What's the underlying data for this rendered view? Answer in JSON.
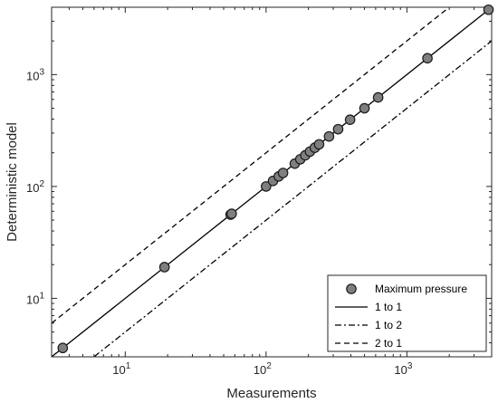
{
  "chart_data": {
    "type": "scatter",
    "xlabel": "Measurements",
    "ylabel": "Deterministic model",
    "xscale": "log",
    "yscale": "log",
    "xlim": [
      3,
      4000
    ],
    "ylim": [
      3,
      4000
    ],
    "grid": false,
    "legend_position": "bottom-right",
    "x_ticks": [
      {
        "base": "10",
        "exp": "1",
        "value": 10
      },
      {
        "base": "10",
        "exp": "2",
        "value": 100
      },
      {
        "base": "10",
        "exp": "3",
        "value": 1000
      }
    ],
    "y_ticks": [
      {
        "base": "10",
        "exp": "1",
        "value": 10
      },
      {
        "base": "10",
        "exp": "2",
        "value": 100
      },
      {
        "base": "10",
        "exp": "3",
        "value": 1000
      }
    ],
    "series": [
      {
        "name": "Maximum pressure",
        "kind": "points",
        "color": "#7f7f7f",
        "x": [
          3.6,
          19,
          56,
          57,
          100,
          112,
          123,
          132,
          160,
          175,
          190,
          205,
          222,
          238,
          280,
          325,
          395,
          500,
          625,
          1400,
          3800
        ],
        "y": [
          3.6,
          19,
          56,
          57,
          100,
          112,
          123,
          132,
          160,
          175,
          190,
          205,
          222,
          238,
          280,
          325,
          395,
          500,
          625,
          1400,
          3800
        ]
      },
      {
        "name": "1 to 1",
        "kind": "line",
        "ratio": 1,
        "dash": "solid",
        "color": "#000000"
      },
      {
        "name": "1 to 2",
        "kind": "line",
        "ratio": 0.5,
        "dash": "dashdot",
        "color": "#000000"
      },
      {
        "name": "2 to 1",
        "kind": "line",
        "ratio": 2,
        "dash": "dashed",
        "color": "#000000"
      }
    ]
  }
}
